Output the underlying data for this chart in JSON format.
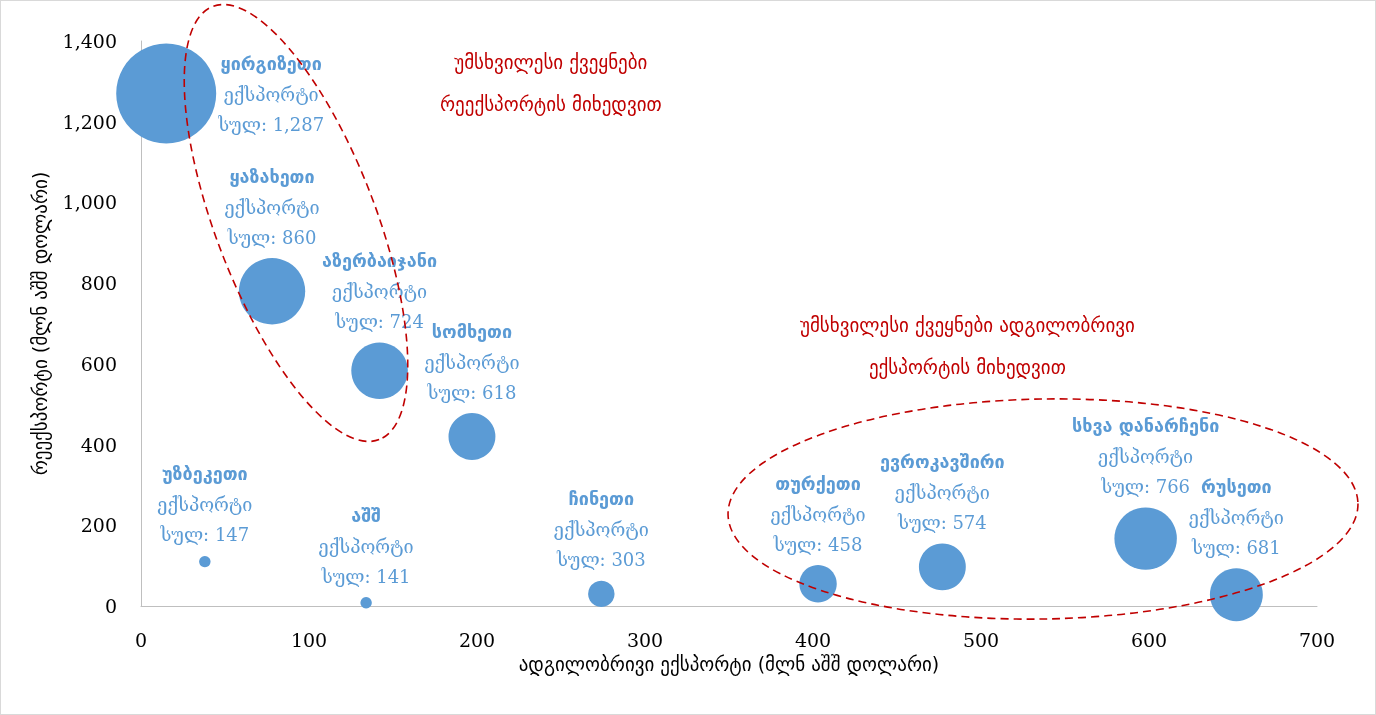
{
  "chart_data": {
    "type": "bubble",
    "xlabel": "ადგილობრივი ექსპორტი (მლნ აშშ დოლარი)",
    "ylabel": "რეექსპორტი (მლნ აშშ დოლარი)",
    "annotations": [
      "უმსხვილესი ქვეყნები\nრეექსპორტის მიხედვით",
      "უმსხვილესი ქვეყნები ადგილობრივი\nექსპორტის მიხედვით",
      {
        "text": "ყირგიზეთი\nექსპორტი\nსულ: 1,287",
        "x": 15,
        "y": 1270
      },
      {
        "text": "ყაზახეთი\nექსპორტი\nსულ: 860",
        "x": 78,
        "y": 780
      },
      {
        "text": "აზერბაიჯანი\nექსპორტი\nსულ: 724",
        "x": 142,
        "y": 583
      },
      {
        "text": "სომხეთი\nექსპორტი\nსულ: 618",
        "x": 197,
        "y": 420
      },
      {
        "text": "უზბეკეთი\nექსპორტი\nსულ: 147",
        "x": 38,
        "y": 110
      },
      {
        "text": "აშშ\nექსპორტი\nსულ: 141",
        "x": 134,
        "y": 8
      },
      {
        "text": "ჩინეთი\nექსპორტი\nსულ: 303",
        "x": 274,
        "y": 30
      },
      {
        "text": "თურქეთი\nექსპორტი\nსულ: 458",
        "x": 403,
        "y": 55
      },
      {
        "text": "ევროკავშირი\nექსპორტი\nსულ: 574",
        "x": 477,
        "y": 97
      },
      {
        "text": "სხვა დანარჩენი\nექსპორტი\nსულ: 766",
        "x": 598,
        "y": 167
      },
      {
        "text": "რუსეთი\nექსპორტი\nსულ: 681",
        "x": 652,
        "y": 28
      }
    ],
    "xlim": [
      0,
      700
    ],
    "xticks": [
      0,
      100,
      200,
      300,
      400,
      500,
      600,
      700
    ],
    "ylim": [
      0,
      1400
    ],
    "yticks": [
      0,
      200,
      400,
      600,
      800,
      {
        "value": 1000,
        "label": "1,000"
      },
      {
        "value": 1200,
        "label": "1,200"
      },
      {
        "value": 1400,
        "label": "1,400"
      }
    ],
    "grid": false,
    "marker": "circle",
    "series": [
      {
        "color": "#5b9bd5",
        "x": [
          15,
          78,
          142,
          197,
          38,
          134,
          274,
          403,
          477,
          598,
          652
        ],
        "values": [
          1270,
          780,
          583,
          420,
          110,
          8,
          30,
          55,
          97,
          167,
          28
        ],
        "sizes": [
          1,
          0.44,
          0.32,
          0.22,
          0.013,
          0.013,
          0.07,
          0.14,
          0.22,
          0.39,
          0.28
        ]
      }
    ]
  }
}
